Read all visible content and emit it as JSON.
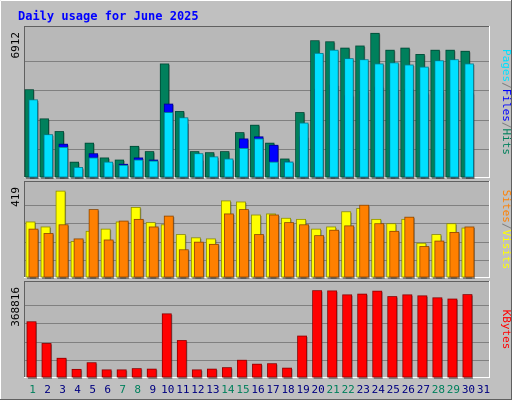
{
  "title": "Daily usage for June 2025",
  "colors": {
    "background": "#c0c0c0",
    "plot": "#b8b8b8",
    "grid": "#808080",
    "title": "#0000ff",
    "hits": "#00805c",
    "files": "#0000ff",
    "pages": "#00e0ff",
    "visits": "#ffff00",
    "sites": "#ff8000",
    "kbytes": "#ff0000",
    "weekend_day": "#00805c",
    "weekday": "#000080"
  },
  "chart_data": [
    {
      "type": "bar",
      "panel": "hits-files-pages",
      "ylabel": "Pages / Files / Hits",
      "ylabel_parts": [
        "Pages",
        "/",
        "Files",
        "/",
        "Hits"
      ],
      "ytick_label": "6912",
      "ylim": [
        0,
        6912
      ],
      "categories": [
        "1",
        "2",
        "3",
        "4",
        "5",
        "6",
        "7",
        "8",
        "9",
        "10",
        "11",
        "12",
        "13",
        "14",
        "15",
        "16",
        "17",
        "18",
        "19",
        "20",
        "21",
        "22",
        "23",
        "24",
        "25",
        "26",
        "27",
        "28",
        "29",
        "30",
        "31"
      ],
      "series": [
        {
          "name": "Hits",
          "values": [
            4180,
            2800,
            2200,
            750,
            1650,
            950,
            850,
            1500,
            1250,
            5400,
            3150,
            1250,
            1200,
            1250,
            2150,
            2500,
            1650,
            900,
            3100,
            6500,
            6450,
            6150,
            6250,
            6850,
            6050,
            6150,
            5850,
            6050,
            6050,
            6000,
            0
          ]
        },
        {
          "name": "Files",
          "values": [
            3600,
            1850,
            1600,
            450,
            1150,
            650,
            650,
            950,
            850,
            3500,
            2600,
            850,
            850,
            850,
            1850,
            1950,
            1550,
            750,
            1950,
            4200,
            4400,
            3900,
            4100,
            4300,
            4150,
            4200,
            4000,
            4100,
            4100,
            4000,
            0
          ]
        },
        {
          "name": "Pages",
          "values": [
            3700,
            2050,
            1450,
            500,
            950,
            750,
            600,
            850,
            800,
            3100,
            2850,
            1150,
            1000,
            900,
            1400,
            1850,
            750,
            750,
            2600,
            5900,
            6050,
            5650,
            5600,
            5400,
            5450,
            5350,
            5250,
            5550,
            5600,
            5400,
            0
          ]
        }
      ]
    },
    {
      "type": "bar",
      "panel": "sites-visits",
      "ylabel": "Sites / Visits",
      "ylabel_parts": [
        "Sites",
        "/",
        "Visits"
      ],
      "ytick_label": "419",
      "ylim": [
        0,
        419
      ],
      "categories": [
        "1",
        "2",
        "3",
        "4",
        "5",
        "6",
        "7",
        "8",
        "9",
        "10",
        "11",
        "12",
        "13",
        "14",
        "15",
        "16",
        "17",
        "18",
        "19",
        "20",
        "21",
        "22",
        "23",
        "24",
        "25",
        "26",
        "27",
        "28",
        "29",
        "30",
        "31"
      ],
      "series": [
        {
          "name": "Visits",
          "values": [
            258,
            235,
            400,
            168,
            215,
            225,
            258,
            325,
            255,
            245,
            200,
            185,
            180,
            355,
            350,
            290,
            295,
            275,
            270,
            225,
            235,
            305,
            320,
            270,
            250,
            270,
            160,
            200,
            250,
            230,
            0
          ]
        },
        {
          "name": "Sites",
          "values": [
            225,
            205,
            245,
            180,
            315,
            175,
            262,
            270,
            235,
            285,
            130,
            165,
            155,
            295,
            315,
            200,
            290,
            255,
            245,
            195,
            220,
            240,
            335,
            250,
            215,
            280,
            145,
            170,
            210,
            235,
            0
          ]
        }
      ]
    },
    {
      "type": "bar",
      "panel": "kbytes",
      "ylabel": "KBytes",
      "ylabel_parts": [
        "KBytes"
      ],
      "ytick_label": "368816",
      "ylim": [
        0,
        368816
      ],
      "categories": [
        "1",
        "2",
        "3",
        "4",
        "5",
        "6",
        "7",
        "8",
        "9",
        "10",
        "11",
        "12",
        "13",
        "14",
        "15",
        "16",
        "17",
        "18",
        "19",
        "20",
        "21",
        "22",
        "23",
        "24",
        "25",
        "26",
        "27",
        "28",
        "29",
        "30",
        "31"
      ],
      "series": [
        {
          "name": "KBytes",
          "values": [
            228000,
            140000,
            80000,
            35000,
            62000,
            33000,
            33000,
            38000,
            36000,
            260000,
            152000,
            33000,
            36000,
            42000,
            72000,
            56000,
            58000,
            40000,
            170000,
            354000,
            353000,
            337000,
            340000,
            352000,
            330000,
            337000,
            333000,
            325000,
            320000,
            338000,
            0
          ]
        }
      ]
    }
  ],
  "days": [
    {
      "label": "1",
      "weekend": true
    },
    {
      "label": "2",
      "weekend": false
    },
    {
      "label": "3",
      "weekend": false
    },
    {
      "label": "4",
      "weekend": false
    },
    {
      "label": "5",
      "weekend": false
    },
    {
      "label": "6",
      "weekend": false
    },
    {
      "label": "7",
      "weekend": true
    },
    {
      "label": "8",
      "weekend": true
    },
    {
      "label": "9",
      "weekend": false
    },
    {
      "label": "10",
      "weekend": false
    },
    {
      "label": "11",
      "weekend": false
    },
    {
      "label": "12",
      "weekend": false
    },
    {
      "label": "13",
      "weekend": false
    },
    {
      "label": "14",
      "weekend": true
    },
    {
      "label": "15",
      "weekend": true
    },
    {
      "label": "16",
      "weekend": false
    },
    {
      "label": "17",
      "weekend": false
    },
    {
      "label": "18",
      "weekend": false
    },
    {
      "label": "19",
      "weekend": false
    },
    {
      "label": "20",
      "weekend": false
    },
    {
      "label": "21",
      "weekend": true
    },
    {
      "label": "22",
      "weekend": true
    },
    {
      "label": "23",
      "weekend": false
    },
    {
      "label": "24",
      "weekend": false
    },
    {
      "label": "25",
      "weekend": false
    },
    {
      "label": "26",
      "weekend": false
    },
    {
      "label": "27",
      "weekend": false
    },
    {
      "label": "28",
      "weekend": true
    },
    {
      "label": "29",
      "weekend": true
    },
    {
      "label": "30",
      "weekend": false
    },
    {
      "label": "31",
      "weekend": false
    }
  ]
}
